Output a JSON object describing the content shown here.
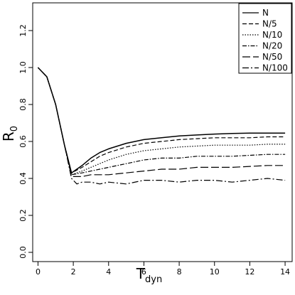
{
  "chart_data": {
    "type": "line",
    "title": "",
    "xlabel": "T",
    "xlabel_sub": "dyn",
    "ylabel": "R",
    "ylabel_sub": "0",
    "xlim": [
      -0.3,
      14.4
    ],
    "ylim": [
      -0.05,
      1.35
    ],
    "xticks": [
      0,
      2,
      4,
      6,
      8,
      10,
      12,
      14
    ],
    "yticks": [
      0.0,
      0.2,
      0.4,
      0.6,
      0.8,
      1.0,
      1.2
    ],
    "ytick_labels": [
      "0.0",
      "0.2",
      "0.4",
      "0.6",
      "0.8",
      "1.0",
      "1.2"
    ],
    "grid": false,
    "legend_position": "top-right",
    "series": [
      {
        "name": "N",
        "dash": "",
        "x": [
          0,
          0.5,
          1.0,
          1.5,
          1.9,
          2.5,
          3.0,
          3.5,
          4,
          5,
          6,
          7,
          8,
          9,
          10,
          11,
          12,
          13,
          14
        ],
        "y": [
          1.0,
          0.95,
          0.8,
          0.58,
          0.43,
          0.47,
          0.51,
          0.54,
          0.56,
          0.59,
          0.61,
          0.62,
          0.63,
          0.635,
          0.64,
          0.643,
          0.645,
          0.645,
          0.645
        ]
      },
      {
        "name": "N/5",
        "dash": "6,3",
        "x": [
          0,
          0.5,
          1.0,
          1.5,
          1.9,
          2.5,
          3.0,
          3.5,
          4,
          5,
          6,
          7,
          8,
          9,
          10,
          11,
          12,
          13,
          14
        ],
        "y": [
          1.0,
          0.95,
          0.8,
          0.58,
          0.43,
          0.46,
          0.49,
          0.52,
          0.54,
          0.57,
          0.59,
          0.6,
          0.61,
          0.615,
          0.62,
          0.62,
          0.62,
          0.625,
          0.625
        ]
      },
      {
        "name": "N/10",
        "dash": "1.5,2",
        "x": [
          0,
          0.5,
          1.0,
          1.5,
          1.9,
          2.5,
          3.0,
          3.5,
          4,
          5,
          6,
          7,
          8,
          9,
          10,
          11,
          12,
          13,
          14
        ],
        "y": [
          1.0,
          0.95,
          0.8,
          0.58,
          0.42,
          0.44,
          0.46,
          0.48,
          0.5,
          0.53,
          0.55,
          0.56,
          0.57,
          0.575,
          0.58,
          0.58,
          0.58,
          0.585,
          0.585
        ]
      },
      {
        "name": "N/20",
        "dash": "6,2,1.5,2",
        "x": [
          0,
          0.5,
          1.0,
          1.5,
          1.9,
          2.5,
          3.0,
          3.5,
          4,
          5,
          6,
          7,
          8,
          9,
          10,
          11,
          12,
          13,
          14
        ],
        "y": [
          1.0,
          0.95,
          0.8,
          0.58,
          0.42,
          0.43,
          0.44,
          0.45,
          0.46,
          0.48,
          0.5,
          0.51,
          0.51,
          0.52,
          0.52,
          0.52,
          0.525,
          0.53,
          0.53
        ]
      },
      {
        "name": "N/50",
        "dash": "11,4",
        "x": [
          0,
          0.5,
          1.0,
          1.5,
          1.9,
          2.5,
          3.0,
          3.5,
          4,
          5,
          6,
          7,
          8,
          9,
          10,
          11,
          12,
          13,
          14
        ],
        "y": [
          1.0,
          0.95,
          0.8,
          0.58,
          0.41,
          0.41,
          0.42,
          0.42,
          0.42,
          0.43,
          0.44,
          0.45,
          0.45,
          0.46,
          0.46,
          0.46,
          0.465,
          0.47,
          0.47
        ]
      },
      {
        "name": "N/100",
        "dash": "9,3,2,3",
        "x": [
          0,
          0.5,
          1.0,
          1.5,
          1.9,
          2.2,
          2.5,
          3.0,
          3.5,
          4,
          5,
          6,
          7,
          8,
          9,
          10,
          11,
          12,
          13,
          14
        ],
        "y": [
          1.0,
          0.95,
          0.8,
          0.58,
          0.4,
          0.37,
          0.38,
          0.38,
          0.37,
          0.38,
          0.37,
          0.39,
          0.39,
          0.38,
          0.39,
          0.39,
          0.38,
          0.39,
          0.4,
          0.39
        ]
      }
    ]
  }
}
